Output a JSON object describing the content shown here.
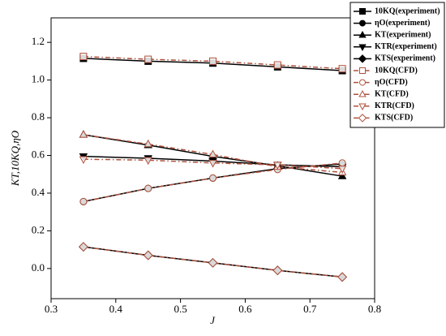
{
  "chart_data": {
    "type": "line",
    "x_label": "J",
    "y_label": "KT,10KQ,ηO",
    "x": [
      0.35,
      0.45,
      0.55,
      0.65,
      0.75
    ],
    "xlim": [
      0.3,
      0.8
    ],
    "xticks": [
      0.3,
      0.4,
      0.5,
      0.6,
      0.7,
      0.8
    ],
    "ylim": [
      -0.16,
      1.33
    ],
    "yticks": [
      {
        "value": 0,
        "label": "0.0"
      },
      0.2,
      0.4,
      0.6,
      0.8,
      {
        "value": 1,
        "label": "1.0"
      },
      1.2
    ],
    "legend": "top-right",
    "series": [
      {
        "name": "10KQ(experiment)",
        "color": "#000000",
        "marker": "square",
        "filled": true,
        "line": "solid",
        "values": [
          1.115,
          1.1,
          1.09,
          1.07,
          1.05
        ]
      },
      {
        "name": "ηO(experiment)",
        "color": "#000000",
        "marker": "circle",
        "filled": true,
        "line": "solid",
        "values": [
          0.355,
          0.425,
          0.48,
          0.53,
          0.555
        ]
      },
      {
        "name": "KT(experiment)",
        "color": "#000000",
        "marker": "triangle-up",
        "filled": true,
        "line": "solid",
        "values": [
          0.71,
          0.655,
          0.595,
          0.545,
          0.49
        ]
      },
      {
        "name": "KTR(experiment)",
        "color": "#000000",
        "marker": "triangle-down",
        "filled": true,
        "line": "solid",
        "values": [
          0.595,
          0.585,
          0.57,
          0.55,
          0.54
        ]
      },
      {
        "name": "KTS(experiment)",
        "color": "#000000",
        "marker": "diamond",
        "filled": true,
        "line": "solid",
        "values": [
          0.115,
          0.07,
          0.03,
          -0.01,
          -0.045
        ]
      },
      {
        "name": "10KQ(CFD)",
        "color": "#b0503c",
        "marker": "square",
        "filled": false,
        "line": "dashdot",
        "values": [
          1.125,
          1.11,
          1.1,
          1.08,
          1.06
        ]
      },
      {
        "name": "ηO(CFD)",
        "color": "#b0503c",
        "marker": "circle",
        "filled": false,
        "line": "dashdot",
        "values": [
          0.355,
          0.425,
          0.48,
          0.525,
          0.56
        ]
      },
      {
        "name": "KT(CFD)",
        "color": "#b0503c",
        "marker": "triangle-up",
        "filled": false,
        "line": "dashdot",
        "values": [
          0.71,
          0.66,
          0.605,
          0.54,
          0.51
        ]
      },
      {
        "name": "KTR(CFD)",
        "color": "#b0503c",
        "marker": "triangle-down",
        "filled": false,
        "line": "dashdot",
        "values": [
          0.58,
          0.575,
          0.56,
          0.55,
          0.53
        ]
      },
      {
        "name": "KTS(CFD)",
        "color": "#b0503c",
        "marker": "diamond",
        "filled": false,
        "line": "dashdot",
        "values": [
          0.115,
          0.07,
          0.03,
          -0.01,
          -0.045
        ]
      }
    ]
  }
}
